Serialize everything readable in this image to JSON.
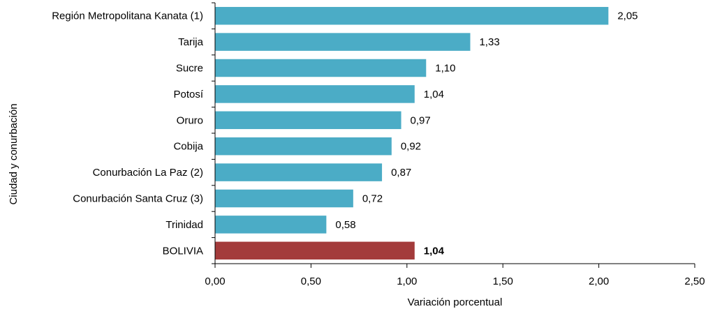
{
  "chart_data": {
    "type": "bar",
    "orientation": "horizontal",
    "categories": [
      "Región Metropolitana Kanata (1)",
      "Tarija",
      "Sucre",
      "Potosí",
      "Oruro",
      "Cobija",
      "Conurbación La Paz (2)",
      "Conurbación Santa Cruz (3)",
      "Trinidad",
      "BOLIVIA"
    ],
    "values": [
      2.05,
      1.33,
      1.1,
      1.04,
      0.97,
      0.92,
      0.87,
      0.72,
      0.58,
      1.04
    ],
    "data_labels": [
      "2,05",
      "1,33",
      "1,10",
      "1,04",
      "0,97",
      "0,92",
      "0,87",
      "0,72",
      "0,58",
      "1,04"
    ],
    "highlight_category": "BOLIVIA",
    "xlabel": "Variación porcentual",
    "ylabel": "Ciudad y conurbación",
    "xlim": [
      0,
      2.5
    ],
    "x_ticks": [
      0,
      0.5,
      1.0,
      1.5,
      2.0,
      2.5
    ],
    "x_tick_labels": [
      "0,00",
      "0,50",
      "1,00",
      "1,50",
      "2,00",
      "2,50"
    ],
    "grid": false,
    "colors": {
      "bar": "#4BACC6",
      "highlight_bar": "#A33B3B",
      "axis": "#000000"
    }
  }
}
